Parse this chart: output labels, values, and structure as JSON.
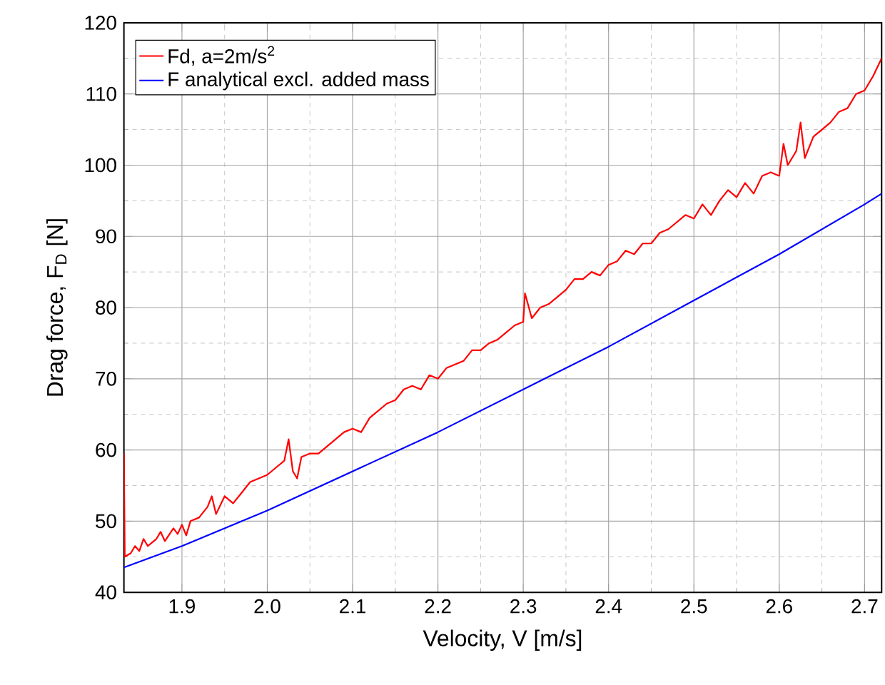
{
  "chart_data": {
    "type": "line",
    "xlabel": "Velocity, V   [m/s]",
    "ylabel": "Drag force, F$_{D}$   [N]",
    "xlim": [
      1.832,
      2.72
    ],
    "ylim": [
      40,
      120
    ],
    "xticks": [
      1.9,
      {
        "value": 2.0,
        "label": "2.0"
      },
      2.1,
      2.2,
      2.3,
      2.4,
      2.5,
      2.6,
      2.7
    ],
    "yticks": [
      40,
      50,
      60,
      70,
      80,
      90,
      100,
      110,
      120
    ],
    "grid": true,
    "legend": "top left",
    "line_style": "solid",
    "marker": "none",
    "series": [
      {
        "name": "Fd, a=2m/s$^{2}$",
        "color": "#ff0000",
        "x": [
          1.832,
          1.833,
          1.84,
          1.845,
          1.85,
          1.855,
          1.86,
          1.87,
          1.875,
          1.88,
          1.89,
          1.895,
          1.9,
          1.905,
          1.91,
          1.92,
          1.93,
          1.935,
          1.94,
          1.95,
          1.96,
          1.97,
          1.98,
          1.99,
          2.0,
          2.01,
          2.02,
          2.025,
          2.03,
          2.035,
          2.04,
          2.05,
          2.06,
          2.07,
          2.08,
          2.09,
          2.1,
          2.11,
          2.12,
          2.13,
          2.14,
          2.15,
          2.16,
          2.17,
          2.18,
          2.19,
          2.2,
          2.21,
          2.22,
          2.23,
          2.24,
          2.25,
          2.26,
          2.27,
          2.28,
          2.29,
          2.3,
          2.302,
          2.31,
          2.32,
          2.33,
          2.34,
          2.35,
          2.36,
          2.37,
          2.38,
          2.39,
          2.4,
          2.41,
          2.42,
          2.43,
          2.44,
          2.45,
          2.46,
          2.47,
          2.48,
          2.49,
          2.5,
          2.51,
          2.52,
          2.53,
          2.54,
          2.55,
          2.56,
          2.57,
          2.58,
          2.59,
          2.6,
          2.605,
          2.61,
          2.62,
          2.625,
          2.63,
          2.64,
          2.65,
          2.66,
          2.67,
          2.68,
          2.69,
          2.7,
          2.71,
          2.72
        ],
        "values": [
          59.5,
          45,
          45.5,
          46.5,
          45.8,
          47.5,
          46.5,
          47.5,
          48.5,
          47.2,
          49,
          48.2,
          49.5,
          48,
          50,
          50.5,
          52,
          53.5,
          51,
          53.5,
          52.5,
          54,
          55.5,
          56,
          56.5,
          57.5,
          58.5,
          61.5,
          57,
          56,
          59,
          59.5,
          59.5,
          60.5,
          61.5,
          62.5,
          63,
          62.5,
          64.5,
          65.5,
          66.5,
          67,
          68.5,
          69,
          68.5,
          70.5,
          70,
          71.5,
          72,
          72.5,
          74,
          74,
          75,
          75.5,
          76.5,
          77.5,
          78,
          82,
          78.5,
          80,
          80.5,
          81.5,
          82.5,
          84,
          84,
          85,
          84.5,
          86,
          86.5,
          88,
          87.5,
          89,
          89,
          90.5,
          91,
          92,
          93,
          92.5,
          94.5,
          93,
          95,
          96.5,
          95.5,
          97.5,
          96,
          98.5,
          99,
          98.5,
          103,
          100,
          102,
          106,
          101,
          104,
          105,
          106,
          107.5,
          108,
          110,
          110.5,
          112.5,
          115
        ]
      },
      {
        "name": "F analytical excl. added mass",
        "color": "#0000ff",
        "x": [
          1.832,
          1.9,
          2.0,
          2.1,
          2.2,
          2.3,
          2.4,
          2.5,
          2.6,
          2.7,
          2.72
        ],
        "values": [
          43.5,
          46.5,
          51.5,
          57,
          62.5,
          68.5,
          74.5,
          81,
          87.5,
          94.5,
          96
        ]
      }
    ]
  }
}
